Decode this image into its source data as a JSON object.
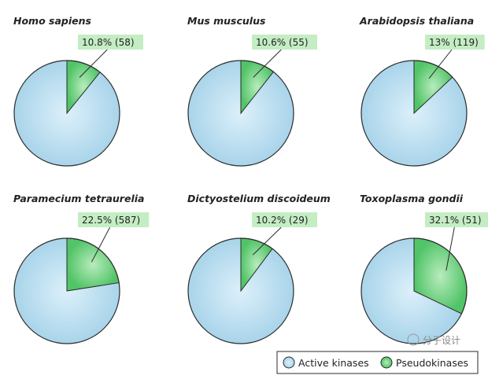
{
  "chart_data": [
    {
      "type": "pie",
      "title": "Homo sapiens",
      "slices": [
        {
          "label": "Active kinases",
          "value": 89.2
        },
        {
          "label": "Pseudokinases",
          "value": 10.8
        }
      ],
      "callout": "10.8% (58)"
    },
    {
      "type": "pie",
      "title": "Mus musculus",
      "slices": [
        {
          "label": "Active kinases",
          "value": 89.4
        },
        {
          "label": "Pseudokinases",
          "value": 10.6
        }
      ],
      "callout": "10.6% (55)"
    },
    {
      "type": "pie",
      "title": "Arabidopsis thaliana",
      "slices": [
        {
          "label": "Active kinases",
          "value": 87
        },
        {
          "label": "Pseudokinases",
          "value": 13
        }
      ],
      "callout": "13% (119)"
    },
    {
      "type": "pie",
      "title": "Paramecium tetraurelia",
      "slices": [
        {
          "label": "Active kinases",
          "value": 77.5
        },
        {
          "label": "Pseudokinases",
          "value": 22.5
        }
      ],
      "callout": "22.5% (587)"
    },
    {
      "type": "pie",
      "title": "Dictyostelium discoideum",
      "slices": [
        {
          "label": "Active kinases",
          "value": 89.8
        },
        {
          "label": "Pseudokinases",
          "value": 10.2
        }
      ],
      "callout": "10.2% (29)"
    },
    {
      "type": "pie",
      "title": "Toxoplasma gondii",
      "slices": [
        {
          "label": "Active kinases",
          "value": 67.9
        },
        {
          "label": "Pseudokinases",
          "value": 32.1
        }
      ],
      "callout": "32.1% (51)"
    }
  ],
  "legend": {
    "placement": "bottom-right",
    "items": [
      {
        "label": "Active kinases",
        "color": "#a9d4ea"
      },
      {
        "label": "Pseudokinases",
        "color": "#52c468"
      }
    ]
  },
  "colors": {
    "active": "#a9d4ea",
    "active_light": "#dcf0fa",
    "pseudo": "#52c468",
    "pseudo_light": "#b8ecbd",
    "callout_bg": "#c4edc3",
    "outline": "#2b2b2b"
  },
  "watermark": "分子设计"
}
